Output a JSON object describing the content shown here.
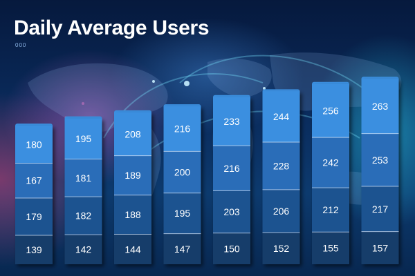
{
  "title": "Daily Average Users",
  "subtitle": "000",
  "colors": {
    "segment_1": "#3b8fe0",
    "segment_2": "#2b6db8",
    "segment_3": "#1f5390",
    "segment_4": "#173c6b",
    "label": "#ffffff"
  },
  "chart_data": {
    "type": "bar",
    "stacked": true,
    "categories": [
      "",
      "",
      "",
      "",
      "",
      "",
      "",
      ""
    ],
    "series": [
      {
        "values": [
          139,
          142,
          144,
          147,
          150,
          152,
          155,
          157
        ]
      },
      {
        "values": [
          179,
          182,
          188,
          195,
          203,
          206,
          212,
          217
        ]
      },
      {
        "values": [
          167,
          181,
          189,
          200,
          216,
          228,
          242,
          253
        ]
      },
      {
        "values": [
          180,
          195,
          208,
          216,
          233,
          244,
          256,
          263
        ]
      }
    ],
    "xlabel": "",
    "ylabel": "",
    "grid": false,
    "legend": "none"
  }
}
